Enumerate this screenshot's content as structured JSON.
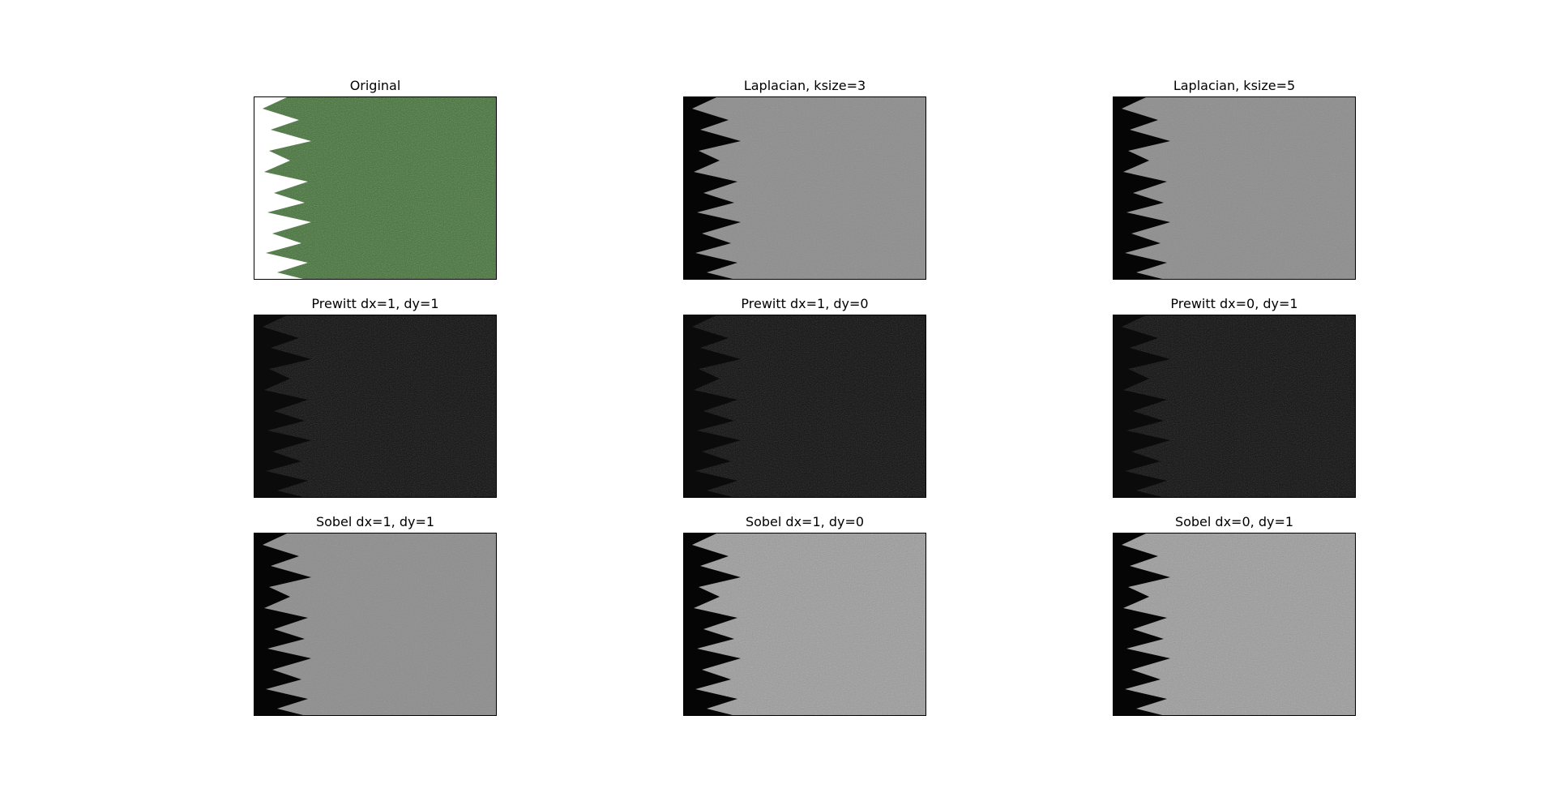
{
  "figure": {
    "panels": [
      {
        "id": "original",
        "title": "Original",
        "kind": "photo"
      },
      {
        "id": "laplacian-3",
        "title": "Laplacian, ksize=3",
        "kind": "gray-edge"
      },
      {
        "id": "laplacian-5",
        "title": "Laplacian, ksize=5",
        "kind": "gray-edge"
      },
      {
        "id": "prewitt-11",
        "title": "Prewitt dx=1, dy=1",
        "kind": "dark-edge"
      },
      {
        "id": "prewitt-10",
        "title": "Prewitt dx=1, dy=0",
        "kind": "dark-edge"
      },
      {
        "id": "prewitt-01",
        "title": "Prewitt dx=0, dy=1",
        "kind": "dark-edge"
      },
      {
        "id": "sobel-11",
        "title": "Sobel dx=1, dy=1",
        "kind": "gray-edge"
      },
      {
        "id": "sobel-10",
        "title": "Sobel dx=1, dy=0",
        "kind": "textured-gray"
      },
      {
        "id": "sobel-01",
        "title": "Sobel dx=0, dy=1",
        "kind": "textured-gray"
      }
    ]
  }
}
